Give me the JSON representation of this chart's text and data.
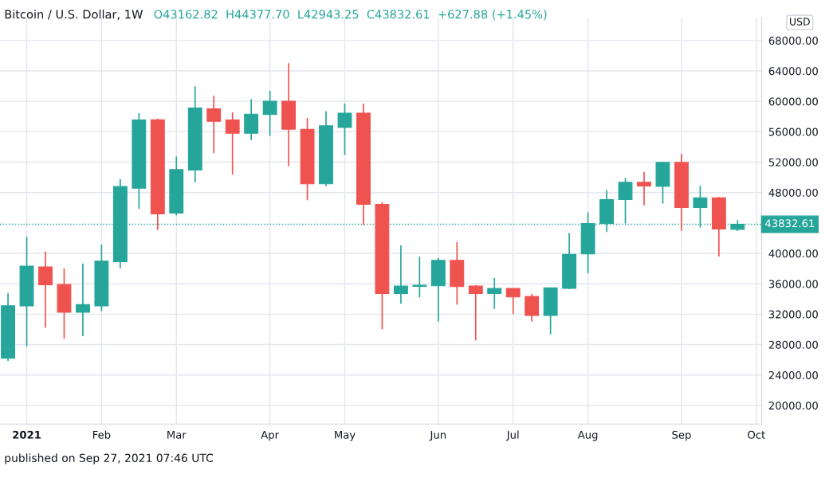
{
  "chart_data": {
    "type": "candlestick",
    "title": "Bitcoin / U.S. Dollar, 1W",
    "subtitle": "O43162.82  H44377.70  L42943.25  C43832.61  +627.88 (+1.45%)",
    "ylabel": "USD",
    "annotations": [
      "published on Sep 27, 2021 07:46 UTC"
    ],
    "x": [
      "2020-12-28",
      "2021-01-04",
      "2021-01-11",
      "2021-01-18",
      "2021-01-25",
      "2021-02-01",
      "2021-02-08",
      "2021-02-15",
      "2021-02-22",
      "2021-03-01",
      "2021-03-08",
      "2021-03-15",
      "2021-03-22",
      "2021-03-29",
      "2021-04-05",
      "2021-04-12",
      "2021-04-19",
      "2021-04-26",
      "2021-05-03",
      "2021-05-10",
      "2021-05-17",
      "2021-05-24",
      "2021-05-31",
      "2021-06-07",
      "2021-06-14",
      "2021-06-21",
      "2021-06-28",
      "2021-07-05",
      "2021-07-12",
      "2021-07-19",
      "2021-07-26",
      "2021-08-02",
      "2021-08-09",
      "2021-08-16",
      "2021-08-23",
      "2021-08-30",
      "2021-09-06",
      "2021-09-13",
      "2021-09-20",
      "2021-09-27"
    ],
    "ohlc": [
      [
        26200,
        34760,
        25860,
        33100
      ],
      [
        33090,
        42160,
        27780,
        38320
      ],
      [
        38220,
        40240,
        30230,
        35880
      ],
      [
        35910,
        38010,
        28760,
        32250
      ],
      [
        32250,
        38670,
        29110,
        33260
      ],
      [
        33090,
        41150,
        32390,
        38980
      ],
      [
        38910,
        49770,
        38010,
        48790
      ],
      [
        48580,
        58450,
        45860,
        57550
      ],
      [
        57580,
        57720,
        43070,
        45190
      ],
      [
        45300,
        52730,
        44990,
        51020
      ],
      [
        50950,
        61980,
        49350,
        59120
      ],
      [
        59010,
        60720,
        53180,
        57370
      ],
      [
        57550,
        58560,
        50390,
        55800
      ],
      [
        55800,
        60270,
        54890,
        58310
      ],
      [
        58280,
        61380,
        55450,
        60020
      ],
      [
        60020,
        65010,
        51480,
        56320
      ],
      [
        56320,
        57820,
        47010,
        49140
      ],
      [
        49140,
        58700,
        48820,
        56780
      ],
      [
        56570,
        59710,
        52940,
        58450
      ],
      [
        58450,
        59710,
        43730,
        46450
      ],
      [
        46450,
        46730,
        30020,
        34730
      ],
      [
        34730,
        41040,
        33370,
        35700
      ],
      [
        35670,
        39580,
        34200,
        35810
      ],
      [
        35740,
        39400,
        31030,
        39090
      ],
      [
        39090,
        41500,
        33260,
        35630
      ],
      [
        35700,
        35840,
        28550,
        34730
      ],
      [
        34730,
        36750,
        32700,
        35390
      ],
      [
        35390,
        35400,
        32010,
        34270
      ],
      [
        34340,
        34690,
        31030,
        31830
      ],
      [
        31830,
        35500,
        29360,
        35460
      ],
      [
        35390,
        42680,
        35320,
        39860
      ],
      [
        39930,
        45400,
        37380,
        43940
      ],
      [
        43940,
        48340,
        42820,
        47080
      ],
      [
        47080,
        49940,
        43940,
        49350
      ],
      [
        49350,
        50710,
        46310,
        48860
      ],
      [
        48820,
        52030,
        46560,
        51960
      ],
      [
        51960,
        53080,
        42960,
        46030
      ],
      [
        46030,
        48890,
        43420,
        47320
      ],
      [
        47320,
        47430,
        39580,
        43210
      ],
      [
        43162.82,
        44377.7,
        42943.25,
        43832.61
      ]
    ],
    "colors": [
      "#26a69a",
      "#26a69a",
      "#ef5350",
      "#ef5350",
      "#26a69a",
      "#26a69a",
      "#26a69a",
      "#26a69a",
      "#ef5350",
      "#26a69a",
      "#26a69a",
      "#ef5350",
      "#ef5350",
      "#26a69a",
      "#26a69a",
      "#ef5350",
      "#ef5350",
      "#26a69a",
      "#26a69a",
      "#ef5350",
      "#ef5350",
      "#26a69a",
      "#26a69a",
      "#26a69a",
      "#ef5350",
      "#ef5350",
      "#26a69a",
      "#ef5350",
      "#ef5350",
      "#26a69a",
      "#26a69a",
      "#26a69a",
      "#26a69a",
      "#26a69a",
      "#ef5350",
      "#26a69a",
      "#ef5350",
      "#26a69a",
      "#ef5350",
      "#26a69a"
    ],
    "xlim": [
      "2020-12-25",
      "2021-10-06"
    ],
    "xticks": [
      {
        "value": "2021-01-04",
        "label": "2021"
      },
      {
        "value": "2021-02-01",
        "label": "Feb"
      },
      {
        "value": "2021-03-01",
        "label": "Mar"
      },
      {
        "value": "2021-04-05",
        "label": "Apr"
      },
      {
        "value": "2021-05-03",
        "label": "May"
      },
      {
        "value": "2021-06-07",
        "label": "Jun"
      },
      {
        "value": "2021-07-05",
        "label": "Jul"
      },
      {
        "value": "2021-08-02",
        "label": "Aug"
      },
      {
        "value": "2021-09-06",
        "label": "Sep"
      },
      {
        "value": "2021-10-04",
        "label": "Oct"
      }
    ],
    "ylim": [
      17560,
      71000
    ],
    "yticks": [
      {
        "value": 20000,
        "label": "20000.00"
      },
      {
        "value": 24000,
        "label": "24000.00"
      },
      {
        "value": 28000,
        "label": "28000.00"
      },
      {
        "value": 32000,
        "label": "32000.00"
      },
      {
        "value": 36000,
        "label": "36000.00"
      },
      {
        "value": 40000,
        "label": "40000.00"
      },
      {
        "value": 48000,
        "label": "48000.00"
      },
      {
        "value": 52000,
        "label": "52000.00"
      },
      {
        "value": 56000,
        "label": "56000.00"
      },
      {
        "value": 60000,
        "label": "60000.00"
      },
      {
        "value": 64000,
        "label": "64000.00"
      },
      {
        "value": 68000,
        "label": "68000.00"
      }
    ],
    "ref_lines": [
      {
        "axis": "y",
        "value": 43832.61,
        "label": "43832.61",
        "color": "#26a69a",
        "line_style": "dotted"
      }
    ],
    "grid": true
  }
}
